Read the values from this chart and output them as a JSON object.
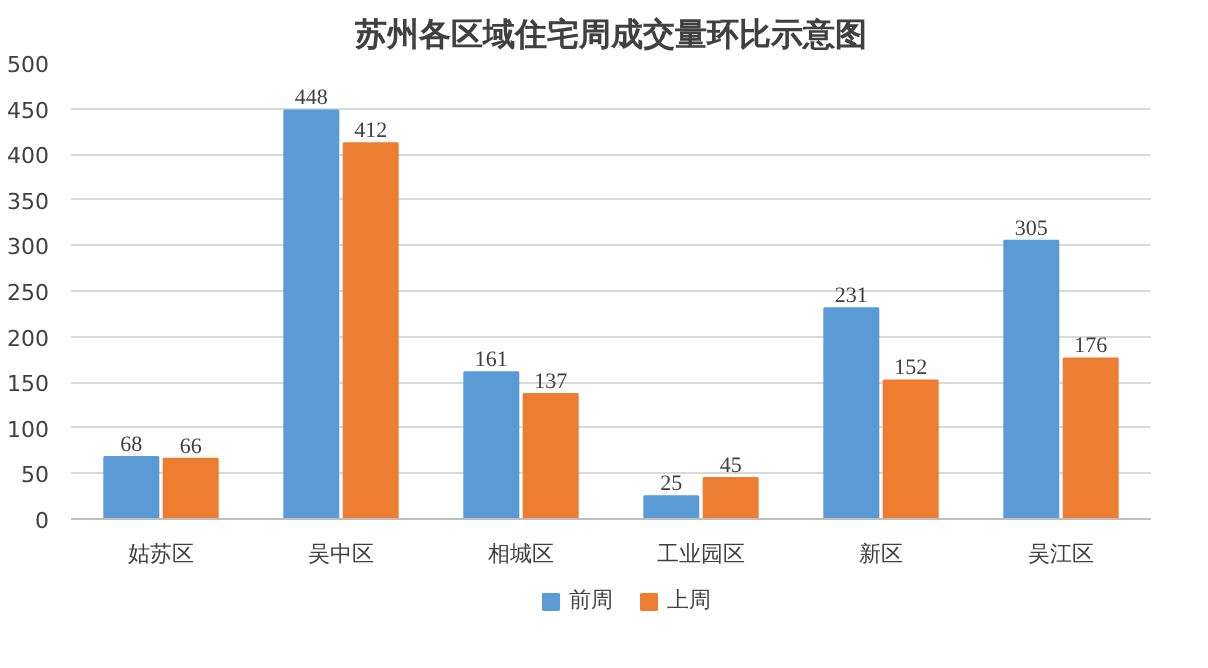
{
  "chart_data": {
    "type": "bar",
    "title": "苏州各区域住宅周成交量环比示意图",
    "categories": [
      "姑苏区",
      "吴中区",
      "相城区",
      "工业园区",
      "新区",
      "吴江区"
    ],
    "series": [
      {
        "name": "前周",
        "color": "#5b9bd5",
        "values": [
          68,
          448,
          161,
          25,
          231,
          305
        ]
      },
      {
        "name": "上周",
        "color": "#ed7d31",
        "values": [
          66,
          412,
          137,
          45,
          152,
          176
        ]
      }
    ],
    "ylim": [
      0,
      500
    ],
    "yticks": [
      0,
      50,
      100,
      150,
      200,
      250,
      300,
      350,
      400,
      450,
      500
    ],
    "grid": "y",
    "legend": "bottom",
    "data_labels": true
  }
}
